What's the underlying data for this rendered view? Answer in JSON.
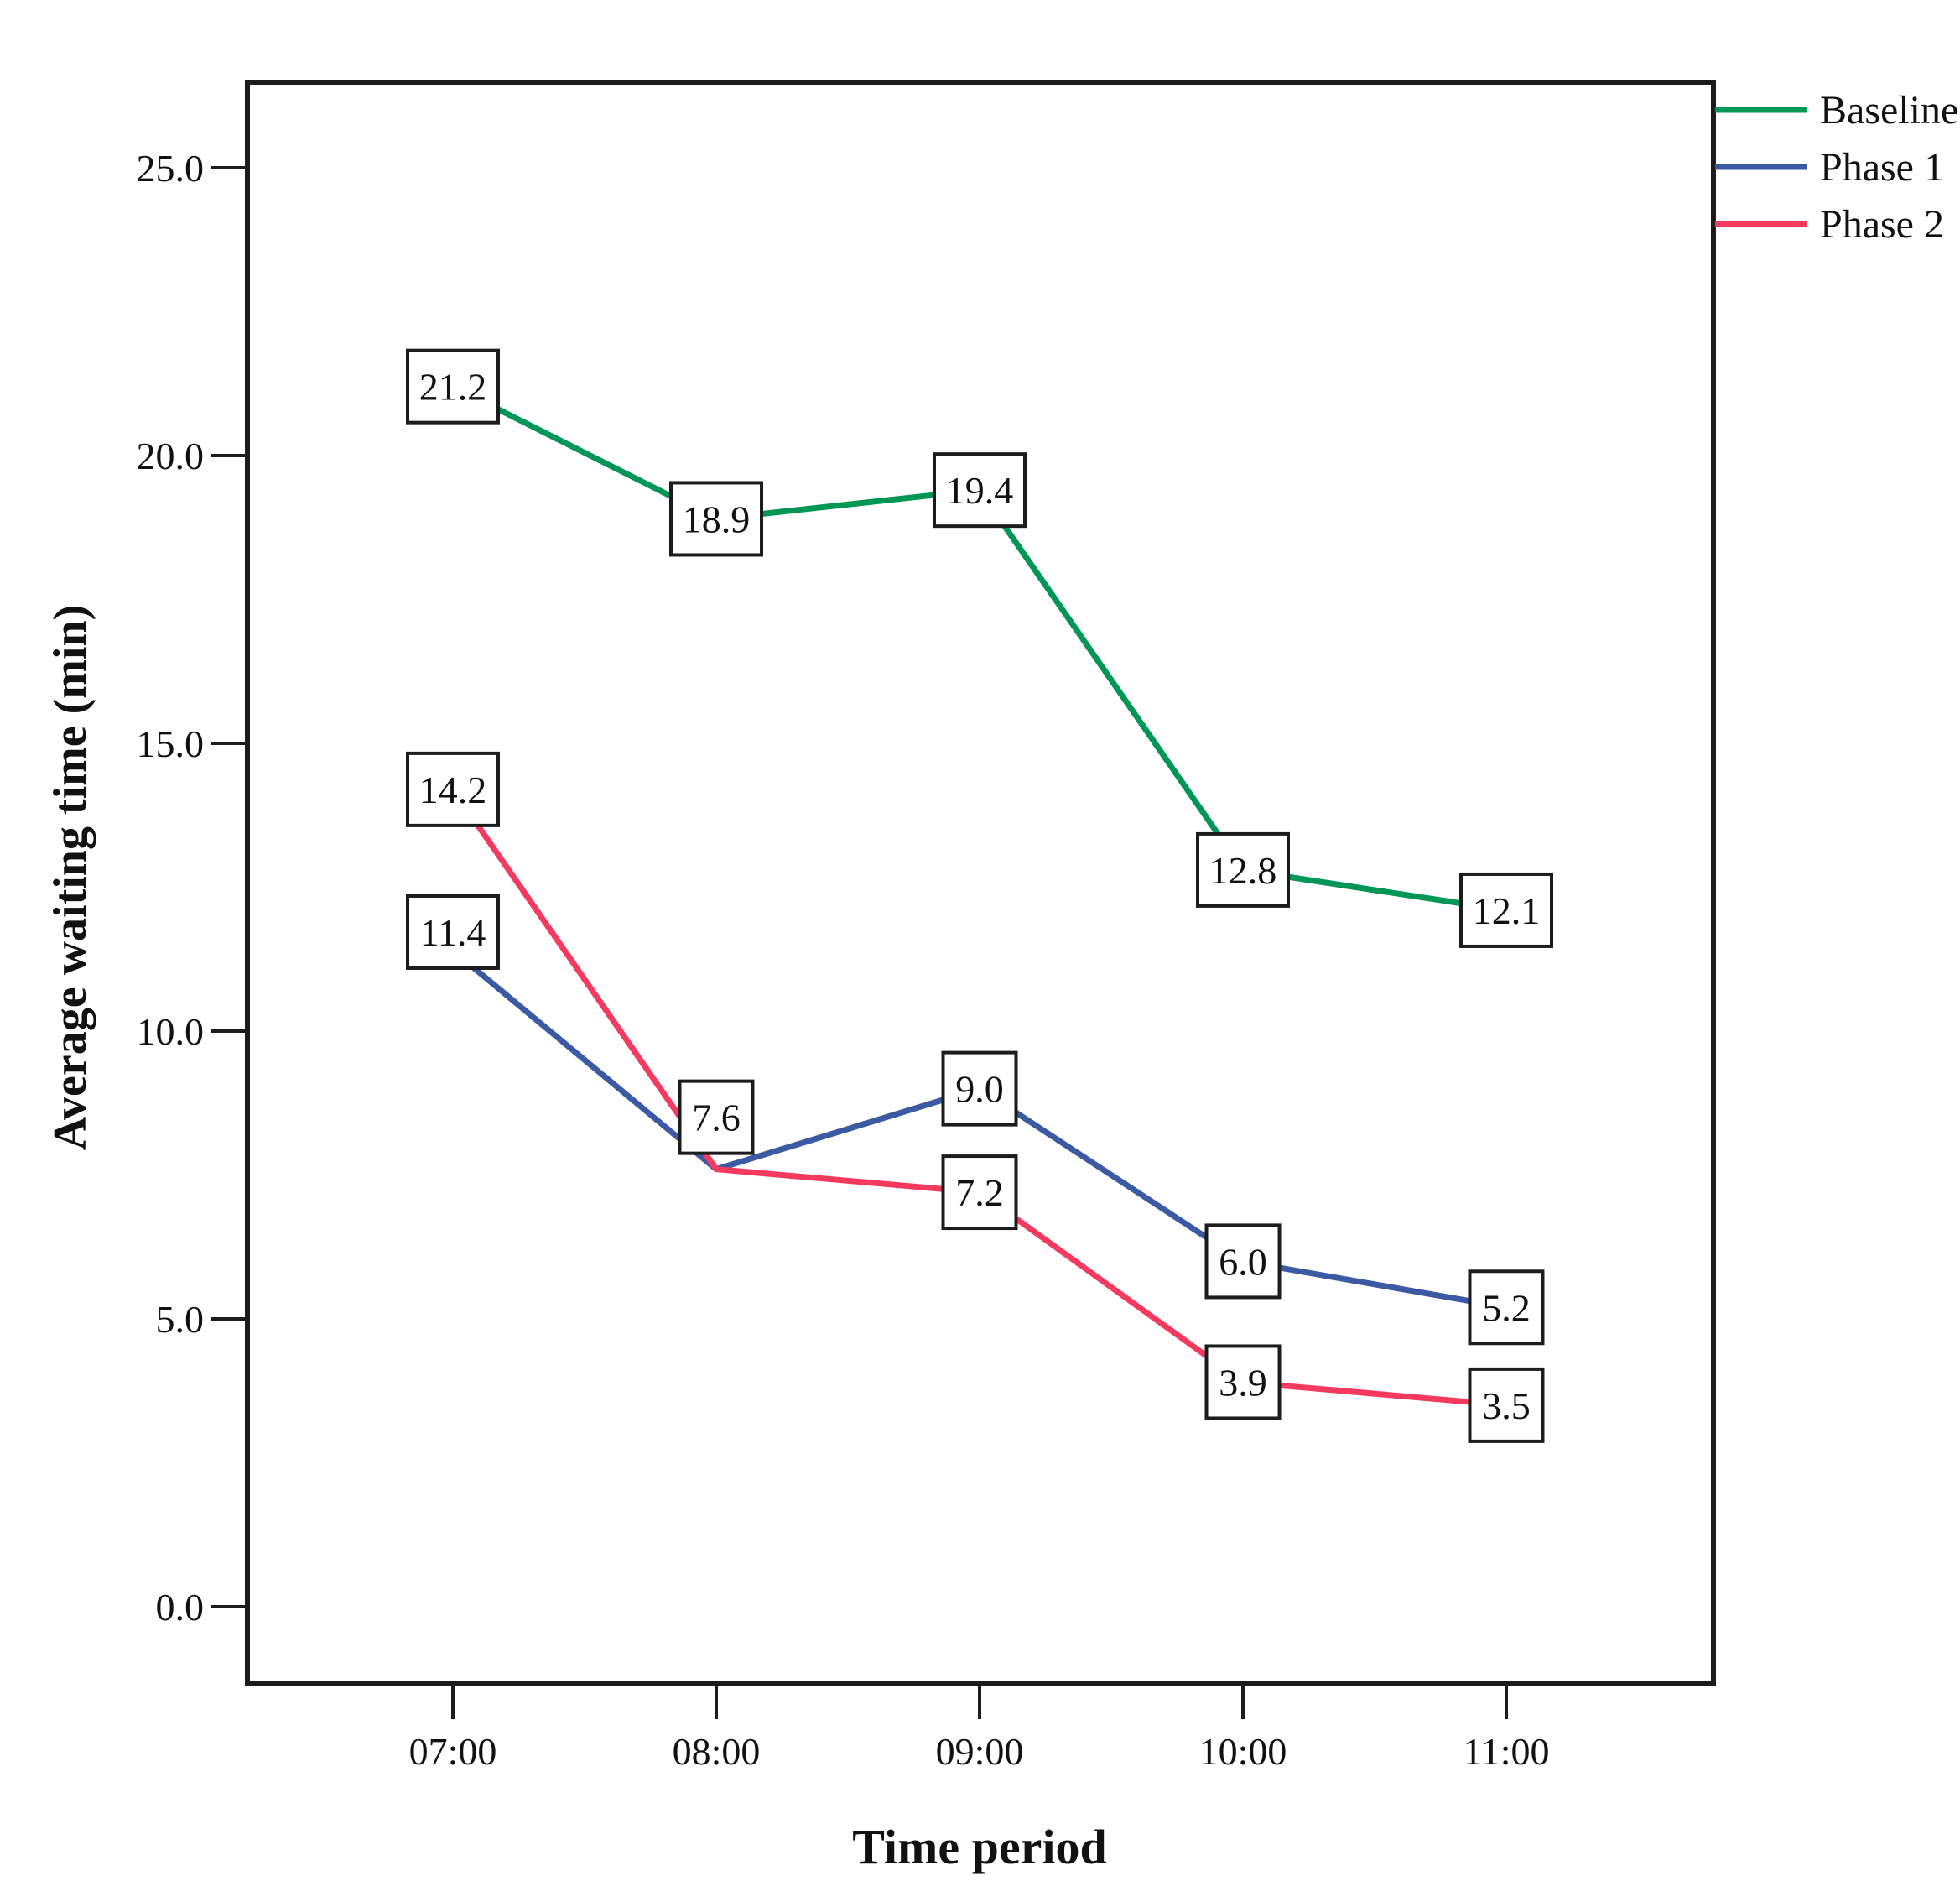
{
  "chart_data": {
    "type": "line",
    "title": "",
    "xlabel": "Time period",
    "ylabel": "Average waiting time (min)",
    "categories": [
      "07:00",
      "08:00",
      "09:00",
      "10:00",
      "11:00"
    ],
    "y_tick_labels": [
      "0.0",
      "5.0",
      "10.0",
      "15.0",
      "20.0",
      "25.0"
    ],
    "ylim": [
      0,
      26.5
    ],
    "grid": false,
    "legend_position": "outside-top-right",
    "point_label_style": "boxed",
    "series": [
      {
        "name": "Baseline",
        "color": "#009655",
        "values": [
          21.2,
          18.9,
          19.4,
          12.8,
          12.1
        ],
        "labels": [
          "21.2",
          "18.9",
          "19.4",
          "12.8",
          "12.1"
        ],
        "label_dy": [
          0,
          0,
          0,
          0,
          0
        ]
      },
      {
        "name": "Phase 1",
        "color": "#3C5AA3",
        "values": [
          11.4,
          7.6,
          9.0,
          6.0,
          5.2
        ],
        "labels": [
          "11.4",
          "7.6",
          "9.0",
          "6.0",
          "5.2"
        ],
        "label_dy": [
          -22,
          -62,
          0,
          0,
          0
        ]
      },
      {
        "name": "Phase 2",
        "color": "#F43A5E",
        "values": [
          14.2,
          7.6,
          7.2,
          3.9,
          3.5
        ],
        "labels": [
          "14.2",
          null,
          "7.2",
          "3.9",
          "3.5"
        ],
        "label_dy": [
          0,
          0,
          0,
          0,
          0
        ]
      }
    ],
    "axis_color": "#1c1c1c",
    "label_box_fill": "#ffffff",
    "label_box_border": "#1c1c1c"
  }
}
